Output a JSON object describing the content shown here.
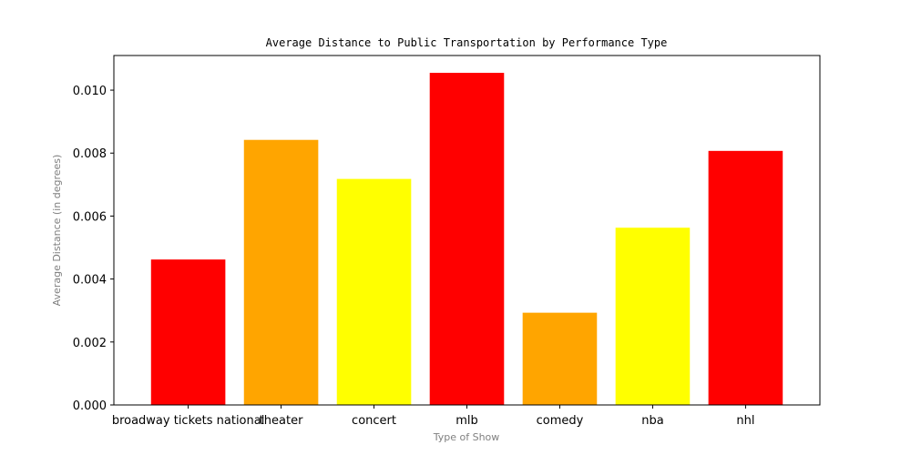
{
  "chart_data": {
    "type": "bar",
    "title": "Average Distance to Public Transportation by Performance Type",
    "xlabel": "Type of Show",
    "ylabel": "Average Distance (in degrees)",
    "categories": [
      "broadway tickets national",
      "theater",
      "concert",
      "mlb",
      "comedy",
      "nba",
      "nhl"
    ],
    "values": [
      0.00462,
      0.00842,
      0.00718,
      0.01055,
      0.00293,
      0.00563,
      0.00807
    ],
    "colors": [
      "#ff0000",
      "#ffa500",
      "#ffff00",
      "#ff0000",
      "#ffa500",
      "#ffff00",
      "#ff0000"
    ],
    "ylim": [
      0,
      0.0111
    ],
    "yticks": [
      0,
      0.002,
      0.004,
      0.006,
      0.008,
      0.01
    ],
    "ytick_labels": [
      "0.000",
      "0.002",
      "0.004",
      "0.006",
      "0.008",
      "0.010"
    ],
    "grid": false,
    "legend": false
  }
}
